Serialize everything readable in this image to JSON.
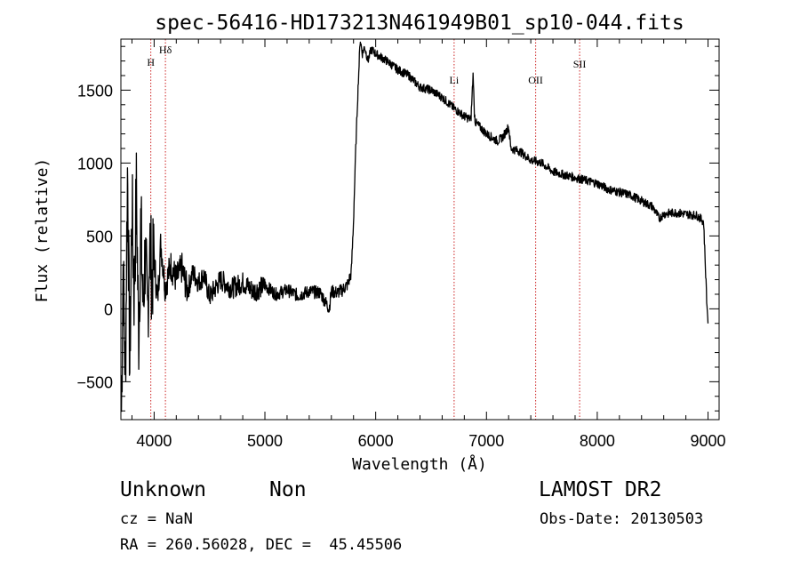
{
  "chart_data": {
    "type": "line",
    "title": "spec-56416-HD173213N461949B01_sp10-044.fits",
    "xlabel": "Wavelength (Å)",
    "ylabel": "Flux (relative)",
    "xlim": [
      3700,
      9100
    ],
    "ylim": [
      -760,
      1850
    ],
    "x_ticks": [
      4000,
      5000,
      6000,
      7000,
      8000,
      9000
    ],
    "y_ticks": [
      -500,
      0,
      500,
      1000,
      1500
    ],
    "grid": false,
    "series": [
      {
        "x": [
          3705,
          3720,
          3740,
          3760,
          3780,
          3800,
          3820,
          3840,
          3860,
          3880,
          3900,
          3920,
          3940,
          3960,
          3980,
          4000,
          4030,
          4060,
          4100,
          4150,
          4200,
          4250,
          4300,
          4350,
          4400,
          4450,
          4500,
          4600,
          4700,
          4800,
          4900,
          5000,
          5100,
          5200,
          5300,
          5400,
          5500,
          5580,
          5600,
          5650,
          5700,
          5750,
          5780,
          5800,
          5820,
          5840,
          5860,
          5880,
          5900,
          5930,
          5960,
          6000,
          6100,
          6200,
          6300,
          6400,
          6500,
          6600,
          6700,
          6800,
          6860,
          6880,
          6890,
          6900,
          7000,
          7100,
          7150,
          7200,
          7220,
          7300,
          7400,
          7500,
          7600,
          7700,
          7800,
          7900,
          8000,
          8100,
          8200,
          8300,
          8400,
          8500,
          8560,
          8600,
          8700,
          8800,
          8900,
          8960,
          8990,
          9000
        ],
        "y": [
          -700,
          300,
          -500,
          1000,
          -400,
          700,
          100,
          800,
          -200,
          600,
          0,
          400,
          -100,
          500,
          200,
          350,
          50,
          450,
          150,
          300,
          200,
          280,
          120,
          250,
          180,
          230,
          80,
          200,
          140,
          180,
          120,
          160,
          100,
          130,
          90,
          120,
          110,
          0,
          120,
          110,
          130,
          170,
          250,
          600,
          1100,
          1500,
          1850,
          1750,
          1800,
          1700,
          1780,
          1750,
          1700,
          1640,
          1600,
          1520,
          1500,
          1450,
          1380,
          1320,
          1300,
          1620,
          1350,
          1280,
          1200,
          1150,
          1180,
          1250,
          1100,
          1080,
          1020,
          1000,
          940,
          920,
          900,
          880,
          860,
          820,
          800,
          780,
          740,
          700,
          620,
          650,
          660,
          650,
          640,
          600,
          30,
          -100
        ]
      }
    ],
    "line_markers": [
      {
        "label": "H",
        "x": 3970
      },
      {
        "label": "Hδ",
        "x": 4102
      },
      {
        "label": "Li",
        "x": 6708
      },
      {
        "label": "OII",
        "x": 7444
      },
      {
        "label": "SII",
        "x": 7841
      }
    ]
  },
  "info": {
    "class_label": "Unknown",
    "subclass_label": "Non",
    "survey": "LAMOST DR2",
    "cz": "cz = NaN",
    "obs_date": "Obs-Date: 20130503",
    "coords": "RA = 260.56028, DEC =  45.45506"
  },
  "colors": {
    "axis": "#000000",
    "spectrum": "#000000",
    "marker_line": "#cc2222",
    "background": "#ffffff"
  }
}
